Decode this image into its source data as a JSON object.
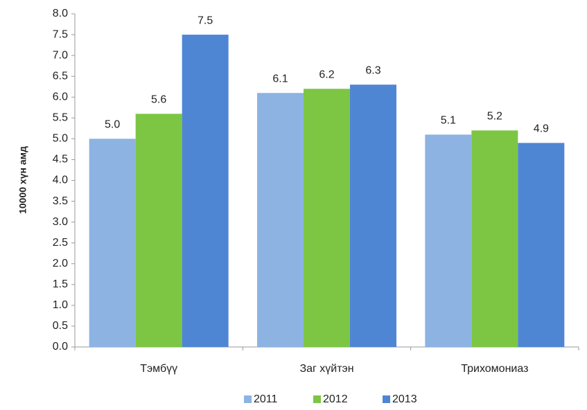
{
  "chart_data": {
    "type": "bar",
    "y_label": "10000 хүн амд",
    "categories": [
      "Тэмбүү",
      "Заг хүйтэн",
      "Трихомониаз"
    ],
    "series": [
      {
        "name": "2011",
        "color": "#8db3e2",
        "values": [
          5.0,
          6.1,
          5.1
        ],
        "value_labels": [
          "5.0",
          "6.1",
          "5.1"
        ]
      },
      {
        "name": "2012",
        "color": "#7cc644",
        "values": [
          5.6,
          6.2,
          5.2
        ],
        "value_labels": [
          "5.6",
          "6.2",
          "5.2"
        ]
      },
      {
        "name": "2013",
        "color": "#4f86d4",
        "values": [
          7.5,
          6.3,
          4.9
        ],
        "value_labels": [
          "7.5",
          "6.3",
          "4.9"
        ]
      }
    ],
    "ylim": [
      0,
      8
    ],
    "yticks": [
      {
        "value": 0,
        "label": "0.0"
      },
      {
        "value": 0.5,
        "label": "0.5"
      },
      {
        "value": 1,
        "label": "1.0"
      },
      {
        "value": 1.5,
        "label": "1.5"
      },
      {
        "value": 2,
        "label": "2.0"
      },
      {
        "value": 2.5,
        "label": "2.5"
      },
      {
        "value": 3,
        "label": "3.0"
      },
      {
        "value": 3.5,
        "label": "3.5"
      },
      {
        "value": 4,
        "label": "4.0"
      },
      {
        "value": 4.5,
        "label": "4.5"
      },
      {
        "value": 5,
        "label": "5.0"
      },
      {
        "value": 5.5,
        "label": "5.5"
      },
      {
        "value": 6,
        "label": "6.0"
      },
      {
        "value": 6.5,
        "label": "6.5"
      },
      {
        "value": 7,
        "label": "7.0"
      },
      {
        "value": 7.5,
        "label": "7.5"
      },
      {
        "value": 8,
        "label": "8.0"
      }
    ],
    "grid": false,
    "legend": "bottom"
  }
}
